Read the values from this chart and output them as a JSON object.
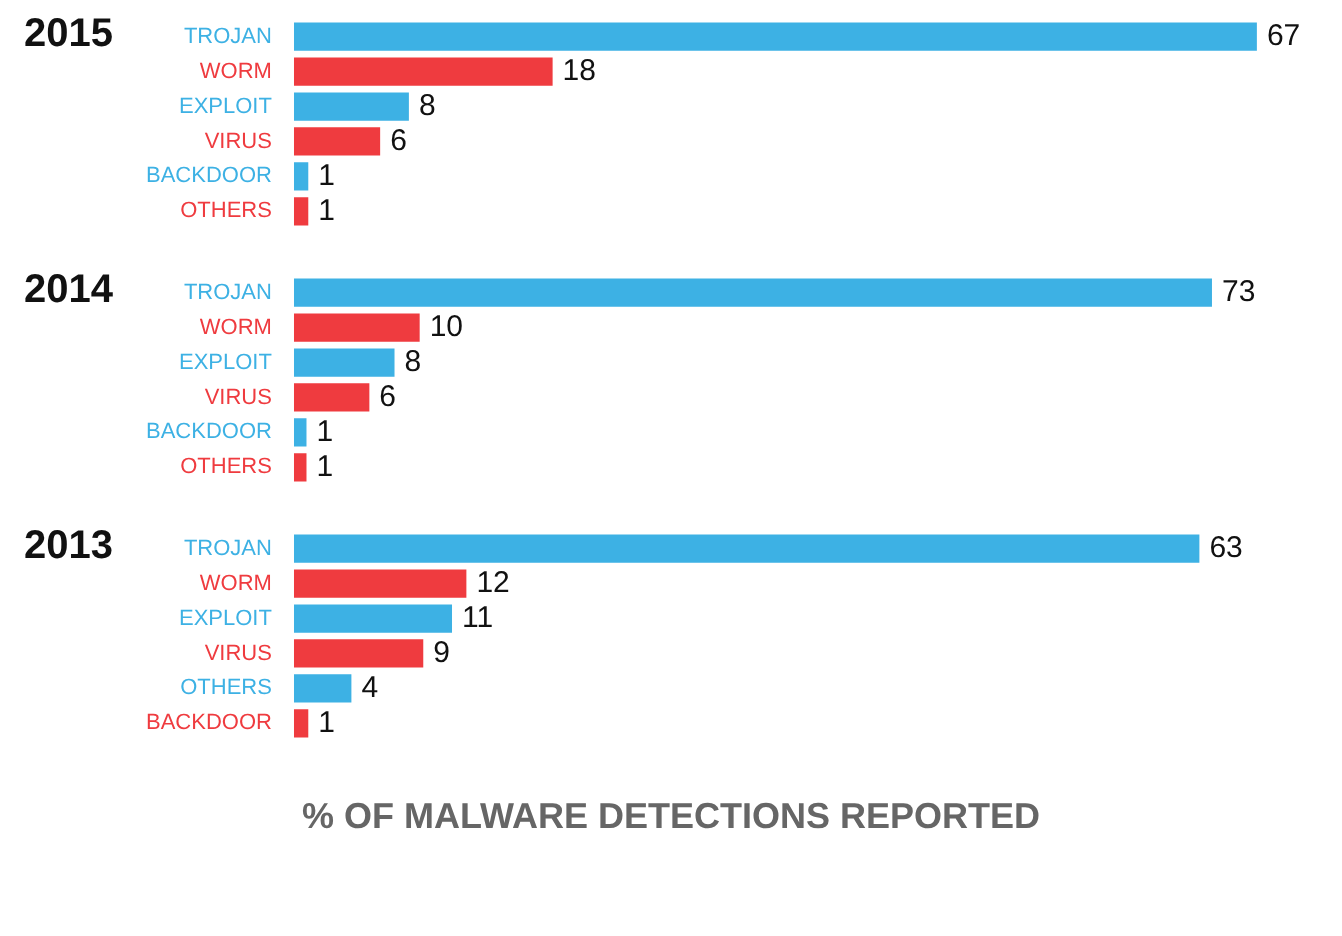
{
  "chart_data": [
    {
      "type": "bar",
      "orientation": "horizontal",
      "title": "2015",
      "categories": [
        "TROJAN",
        "WORM",
        "EXPLOIT",
        "VIRUS",
        "BACKDOOR",
        "OTHERS"
      ],
      "values": [
        67,
        18,
        8,
        6,
        1,
        1
      ],
      "colors": [
        "#3db1e4",
        "#ef3b3f",
        "#3db1e4",
        "#ef3b3f",
        "#3db1e4",
        "#ef3b3f"
      ],
      "data_labels": true
    },
    {
      "type": "bar",
      "orientation": "horizontal",
      "title": "2014",
      "categories": [
        "TROJAN",
        "WORM",
        "EXPLOIT",
        "VIRUS",
        "BACKDOOR",
        "OTHERS"
      ],
      "values": [
        73,
        10,
        8,
        6,
        1,
        1
      ],
      "colors": [
        "#3db1e4",
        "#ef3b3f",
        "#3db1e4",
        "#ef3b3f",
        "#3db1e4",
        "#ef3b3f"
      ],
      "data_labels": true
    },
    {
      "type": "bar",
      "orientation": "horizontal",
      "title": "2013",
      "categories": [
        "TROJAN",
        "WORM",
        "EXPLOIT",
        "VIRUS",
        "OTHERS",
        "BACKDOOR"
      ],
      "values": [
        63,
        12,
        11,
        9,
        4,
        1
      ],
      "colors": [
        "#3db1e4",
        "#ef3b3f",
        "#3db1e4",
        "#ef3b3f",
        "#3db1e4",
        "#ef3b3f"
      ],
      "data_labels": true,
      "xlabel": "% OF MALWARE DETECTIONS REPORTED"
    }
  ]
}
